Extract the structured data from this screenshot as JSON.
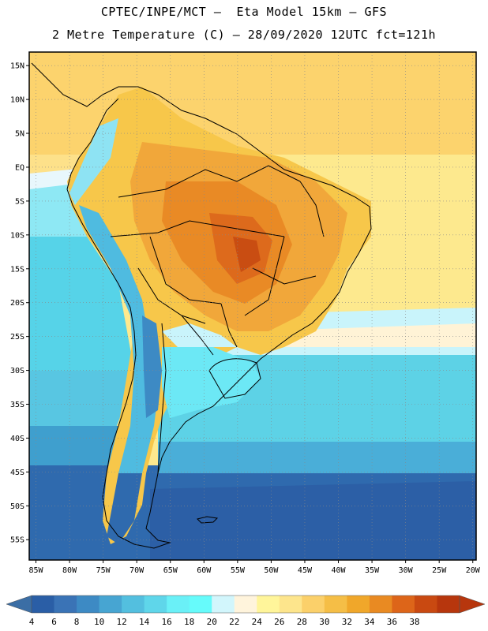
{
  "header": {
    "line1": "CPTEC/INPE/MCT –  Eta Model 15km – GFS",
    "line2": "2 Metre Temperature (C) – 28/09/2020 12UTC fct=121h"
  },
  "map": {
    "lon_range": [
      -86,
      -19.5
    ],
    "lat_range": [
      -58,
      17
    ],
    "lat_ticks": [
      {
        "value": 15,
        "label": "15N"
      },
      {
        "value": 10,
        "label": "10N"
      },
      {
        "value": 5,
        "label": "5N"
      },
      {
        "value": 0,
        "label": "EQ"
      },
      {
        "value": -5,
        "label": "5S"
      },
      {
        "value": -10,
        "label": "10S"
      },
      {
        "value": -15,
        "label": "15S"
      },
      {
        "value": -20,
        "label": "20S"
      },
      {
        "value": -25,
        "label": "25S"
      },
      {
        "value": -30,
        "label": "30S"
      },
      {
        "value": -35,
        "label": "35S"
      },
      {
        "value": -40,
        "label": "40S"
      },
      {
        "value": -45,
        "label": "45S"
      },
      {
        "value": -50,
        "label": "50S"
      },
      {
        "value": -55,
        "label": "55S"
      }
    ],
    "lon_ticks": [
      {
        "value": -85,
        "label": "85W"
      },
      {
        "value": -80,
        "label": "80W"
      },
      {
        "value": -75,
        "label": "75W"
      },
      {
        "value": -70,
        "label": "70W"
      },
      {
        "value": -65,
        "label": "65W"
      },
      {
        "value": -60,
        "label": "60W"
      },
      {
        "value": -55,
        "label": "55W"
      },
      {
        "value": -50,
        "label": "50W"
      },
      {
        "value": -45,
        "label": "45W"
      },
      {
        "value": -40,
        "label": "40W"
      },
      {
        "value": -35,
        "label": "35W"
      },
      {
        "value": -30,
        "label": "30W"
      },
      {
        "value": -25,
        "label": "25W"
      },
      {
        "value": -20,
        "label": "20W"
      }
    ],
    "gridlines": true
  },
  "colorbar": {
    "labels": [
      "4",
      "6",
      "8",
      "10",
      "12",
      "14",
      "16",
      "18",
      "20",
      "22",
      "24",
      "26",
      "28",
      "30",
      "32",
      "34",
      "36",
      "38"
    ],
    "colors": [
      "#2a5ea6",
      "#3a73b6",
      "#3d8ac4",
      "#47a5d2",
      "#53bfdf",
      "#5fd6ea",
      "#6af0f7",
      "#66fbfb",
      "#d2f6fc",
      "#fff4dc",
      "#fff59a",
      "#fde58c",
      "#fbd06a",
      "#f5be46",
      "#f0a72a",
      "#e98a22",
      "#dd6519",
      "#c94911",
      "#b7360d"
    ],
    "under_color": "#3b6ea5",
    "over_color": "#b7360d"
  }
}
